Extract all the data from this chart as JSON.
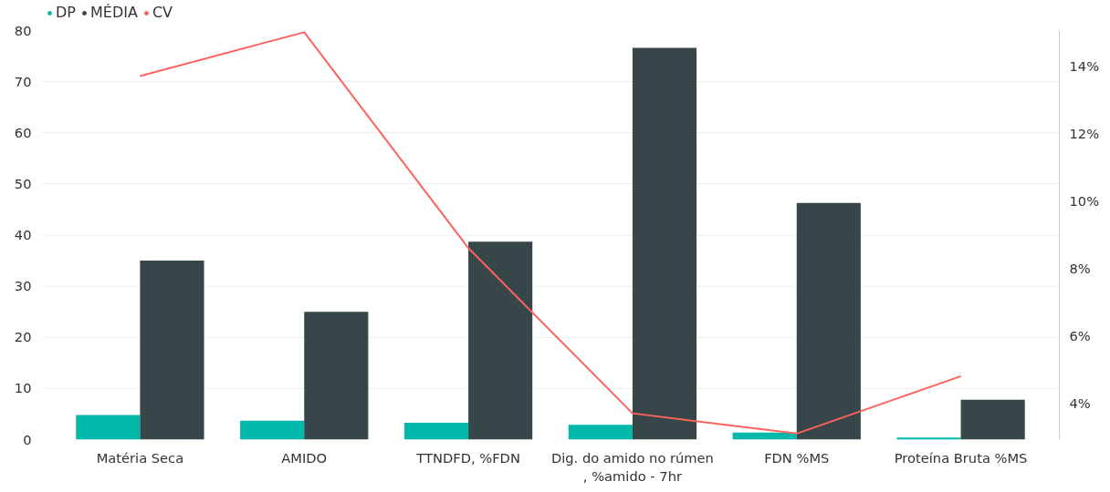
{
  "chart_data": {
    "type": "bar",
    "categories": [
      "Matéria Seca",
      "AMIDO",
      "TTNDFD, %FDN",
      "Dig. do amido no rúmen\n, %amido - 7hr",
      "FDN %MS",
      "Proteína Bruta %MS"
    ],
    "series": [
      {
        "name": "DP",
        "color": "#01b8aa",
        "values": [
          4.8,
          3.7,
          3.3,
          2.9,
          1.4,
          0.4
        ]
      },
      {
        "name": "MÉDIA",
        "color": "#374649",
        "values": [
          35.0,
          25.0,
          38.7,
          76.6,
          46.3,
          7.8
        ]
      },
      {
        "name": "CV",
        "type": "line",
        "axis": "y2",
        "color": "#fd625e",
        "values": [
          13.7,
          15.0,
          8.6,
          3.7,
          3.1,
          4.8
        ]
      }
    ],
    "ylim": [
      0,
      80
    ],
    "yticks": [
      0,
      10,
      20,
      30,
      40,
      50,
      60,
      70,
      80
    ],
    "y2lim": [
      2.92,
      15.05
    ],
    "y2ticks": [
      {
        "value": 4,
        "label": "4%"
      },
      {
        "value": 6,
        "label": "6%"
      },
      {
        "value": 8,
        "label": "8%"
      },
      {
        "value": 10,
        "label": "10%"
      },
      {
        "value": 12,
        "label": "12%"
      },
      {
        "value": 14,
        "label": "14%"
      }
    ],
    "grid": "y",
    "legend": "top left",
    "marker": "none",
    "line_style": "solid"
  }
}
